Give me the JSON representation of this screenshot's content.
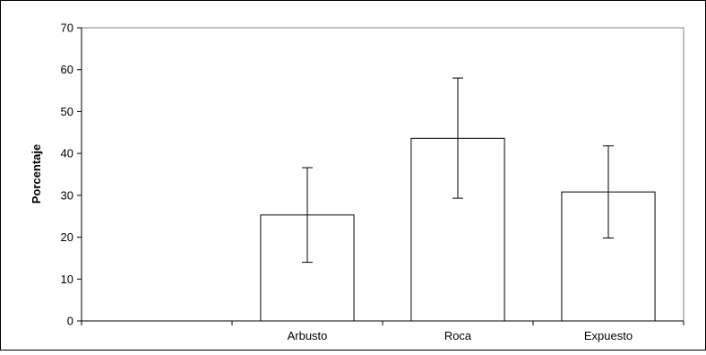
{
  "chart_data": {
    "type": "bar",
    "title": "",
    "xlabel": "",
    "ylabel": "Porcentaje",
    "categories": [
      "Arbusto",
      "Roca",
      "Expuesto"
    ],
    "values": [
      25.3,
      43.6,
      30.8
    ],
    "error": {
      "upper": [
        36.6,
        58.0,
        41.8
      ],
      "lower": [
        14.0,
        29.3,
        19.8
      ]
    },
    "ylim": [
      0,
      70
    ],
    "yticks": [
      0,
      10,
      20,
      30,
      40,
      50,
      60,
      70
    ],
    "ytick_labels": [
      "0",
      "10",
      "20",
      "30",
      "40",
      "50",
      "60",
      "70"
    ],
    "grid": false,
    "bar_fill": "#ffffff",
    "bar_stroke": "#000000",
    "plot_background": "#ffffff",
    "plot_border": "#808080"
  }
}
